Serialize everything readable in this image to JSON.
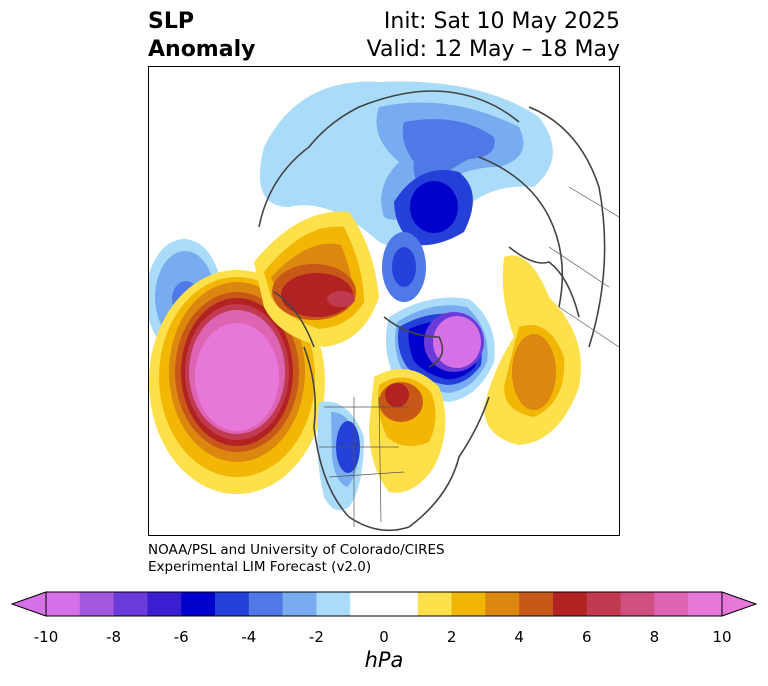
{
  "title": {
    "left_line1": "SLP",
    "left_line2": "Anomaly",
    "right_line1": "Init: Sat 10 May 2025",
    "right_line2": "Valid: 12 May – 18 May"
  },
  "credit": {
    "line1": "NOAA/PSL and University of Colorado/CIRES",
    "line2": "Experimental LIM Forecast (v2.0)"
  },
  "colorbar": {
    "unit": "hPa",
    "ticks": [
      "-10",
      "-8",
      "-6",
      "-4",
      "-2",
      "0",
      "2",
      "4",
      "6",
      "8",
      "10"
    ],
    "colors": [
      "#d670e6",
      "#a257dd",
      "#6a3bd8",
      "#3a1fd2",
      "#0000cc",
      "#2540d8",
      "#4f79e6",
      "#77acf0",
      "#aadcfa",
      "#ffffff",
      "#ffffff",
      "#fde04a",
      "#f2b705",
      "#dc8810",
      "#c85818",
      "#b22222",
      "#c23a50",
      "#cf5080",
      "#dc64b2",
      "#e877da"
    ],
    "under_color": "#d670e6",
    "over_color": "#e877da"
  },
  "anomalies": [
    {
      "name": "west-pacific-low",
      "sign": "negative",
      "peak_hpa": -5
    },
    {
      "name": "northeast-pacific-high",
      "sign": "positive",
      "peak_hpa": 10
    },
    {
      "name": "alaska-high",
      "sign": "positive",
      "peak_hpa": 8
    },
    {
      "name": "siberia-arctic-low",
      "sign": "negative",
      "peak_hpa": -6
    },
    {
      "name": "north-atlantic-low",
      "sign": "negative",
      "peak_hpa": -10
    },
    {
      "name": "subtropical-atlantic-high",
      "sign": "positive",
      "peak_hpa": 5
    },
    {
      "name": "hudson-bay-high",
      "sign": "positive",
      "peak_hpa": 6
    },
    {
      "name": "central-us-low",
      "sign": "negative",
      "peak_hpa": -5
    }
  ]
}
